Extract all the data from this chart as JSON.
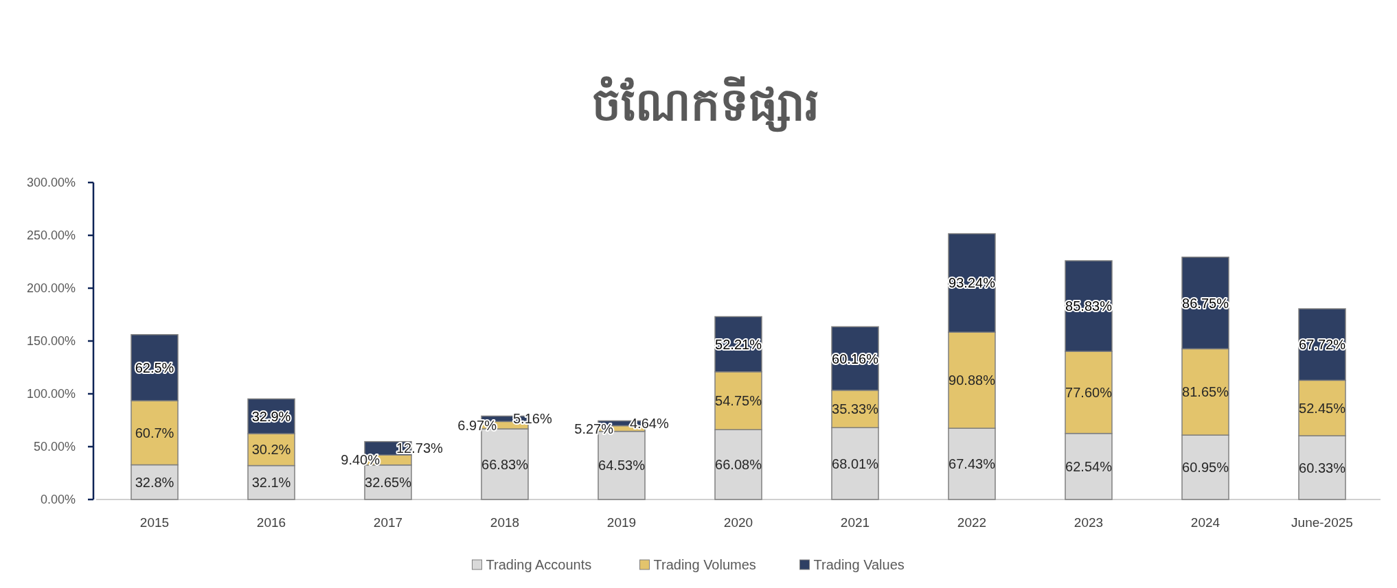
{
  "chart_data": {
    "type": "bar",
    "title": "ចំណែកទីផ្សារ",
    "stacked": true,
    "data_labels": true,
    "legend": "bottom",
    "grid": false,
    "categories": [
      "2015",
      "2016",
      "2017",
      "2018",
      "2019",
      "2020",
      "2021",
      "2022",
      "2023",
      "2024",
      "June-2025"
    ],
    "ylim": [
      0,
      300
    ],
    "yticks": [
      {
        "value": 0,
        "label": "0.00%"
      },
      {
        "value": 50,
        "label": "50.00%"
      },
      {
        "value": 100,
        "label": "100.00%"
      },
      {
        "value": 150,
        "label": "150.00%"
      },
      {
        "value": 200,
        "label": "200.00%"
      },
      {
        "value": 250,
        "label": "250.00%"
      },
      {
        "value": 300,
        "label": "300.00%"
      }
    ],
    "series": [
      {
        "name": "Trading Accounts",
        "color": "#d9d9d9",
        "values": [
          32.8,
          32.1,
          32.65,
          66.83,
          64.53,
          66.08,
          68.01,
          67.43,
          62.54,
          60.95,
          60.33
        ],
        "value_labels": [
          "32.8%",
          "32.1%",
          "32.65%",
          "66.83%",
          "64.53%",
          "66.08%",
          "68.01%",
          "67.43%",
          "62.54%",
          "60.95%",
          "60.33%"
        ]
      },
      {
        "name": "Trading Volumes",
        "color": "#e3c46c",
        "values": [
          60.7,
          30.2,
          9.4,
          6.97,
          5.27,
          54.75,
          35.33,
          90.88,
          77.6,
          81.65,
          52.45
        ],
        "value_labels": [
          "60.7%",
          "30.2%",
          "9.40%",
          "6.97%",
          "5.27%",
          "54.75%",
          "35.33%",
          "90.88%",
          "77.60%",
          "81.65%",
          "52.45%"
        ]
      },
      {
        "name": "Trading Values",
        "color": "#2e3f63",
        "values": [
          62.5,
          32.9,
          12.73,
          5.16,
          4.64,
          52.21,
          60.16,
          93.24,
          85.83,
          86.75,
          67.72
        ],
        "value_labels": [
          "62.5%",
          "32.9%",
          "12.73%",
          "5.16%",
          "4.64%",
          "52.21%",
          "60.16%",
          "93.24%",
          "85.83%",
          "86.75%",
          "67.72%"
        ]
      }
    ]
  }
}
